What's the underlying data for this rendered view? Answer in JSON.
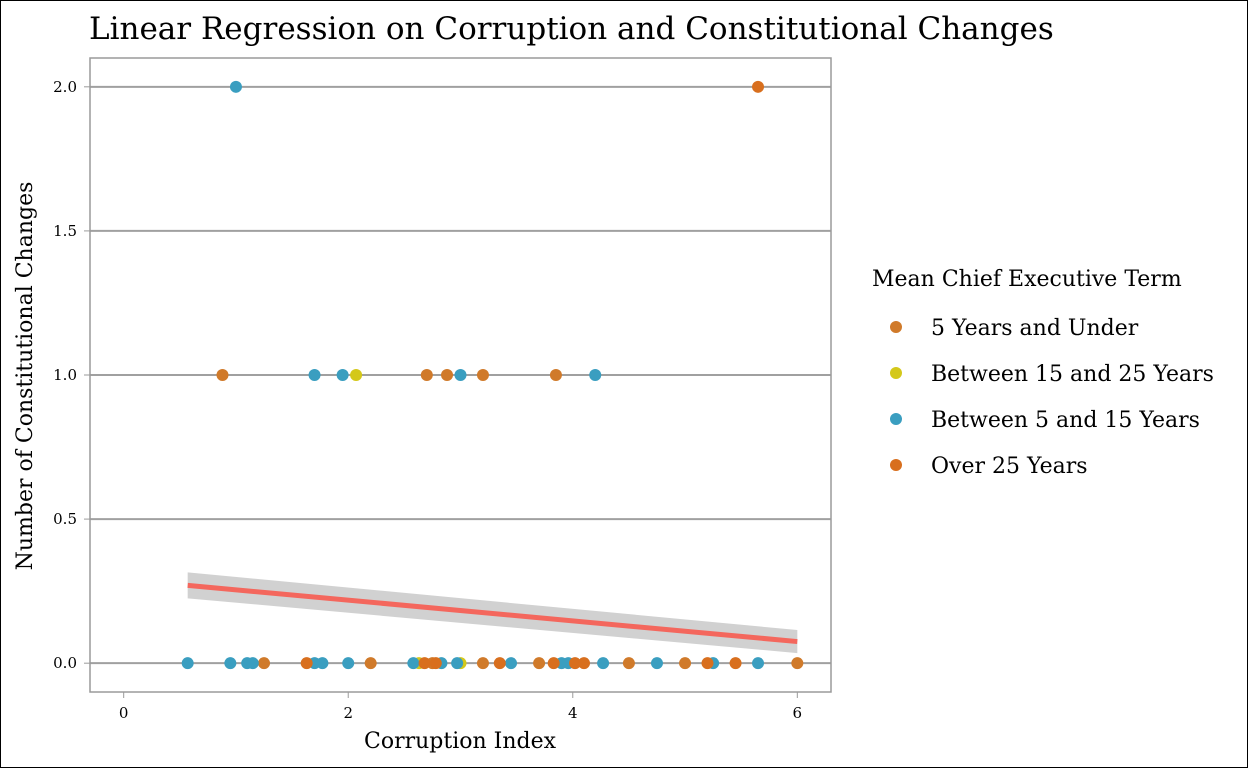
{
  "chart_data": {
    "type": "scatter",
    "title": "Linear Regression on Corruption and Constitutional Changes",
    "xlabel": "Corruption Index",
    "ylabel": "Number of Constitutional Changes",
    "xlim": [
      -0.3,
      6.3
    ],
    "ylim": [
      -0.1,
      2.1
    ],
    "x_ticks": [
      "0",
      "2",
      "4",
      "6"
    ],
    "y_ticks": [
      "0.0",
      "0.5",
      "1.0",
      "1.5",
      "2.0"
    ],
    "grid": "horizontal",
    "legend_position": "right",
    "legend_title": "Mean Chief Executive Term",
    "series": [
      {
        "name": "5 Years and Under",
        "color": "#d07a2a",
        "points": [
          [
            0.88,
            1
          ],
          [
            2.7,
            1
          ],
          [
            2.88,
            1
          ],
          [
            3.2,
            1
          ],
          [
            3.85,
            1
          ],
          [
            1.25,
            0
          ],
          [
            2.2,
            0
          ],
          [
            2.75,
            0
          ],
          [
            3.2,
            0
          ],
          [
            3.7,
            0
          ],
          [
            4.5,
            0
          ],
          [
            5.0,
            0
          ],
          [
            6.0,
            0
          ]
        ]
      },
      {
        "name": "Between 15 and 25 Years",
        "color": "#d4c81a",
        "points": [
          [
            2.07,
            1
          ],
          [
            2.63,
            0
          ],
          [
            3.0,
            0
          ]
        ]
      },
      {
        "name": "Between 5 and 15 Years",
        "color": "#3a9ec0",
        "points": [
          [
            1.0,
            2
          ],
          [
            1.7,
            1
          ],
          [
            1.95,
            1
          ],
          [
            3.0,
            1
          ],
          [
            4.2,
            1
          ],
          [
            0.57,
            0
          ],
          [
            0.95,
            0
          ],
          [
            1.1,
            0
          ],
          [
            1.15,
            0
          ],
          [
            1.7,
            0
          ],
          [
            1.77,
            0
          ],
          [
            2.0,
            0
          ],
          [
            2.58,
            0
          ],
          [
            2.83,
            0
          ],
          [
            2.97,
            0
          ],
          [
            3.45,
            0
          ],
          [
            3.9,
            0
          ],
          [
            3.96,
            0
          ],
          [
            4.27,
            0
          ],
          [
            4.75,
            0
          ],
          [
            5.25,
            0
          ],
          [
            5.65,
            0
          ]
        ]
      },
      {
        "name": "Over 25 Years",
        "color": "#d86f1e",
        "points": [
          [
            5.65,
            2
          ],
          [
            1.63,
            0
          ],
          [
            2.68,
            0
          ],
          [
            2.78,
            0
          ],
          [
            3.35,
            0
          ],
          [
            3.83,
            0
          ],
          [
            4.02,
            0
          ],
          [
            4.1,
            0
          ],
          [
            5.2,
            0
          ],
          [
            5.45,
            0
          ]
        ]
      }
    ],
    "regression": {
      "color": "#f4675d",
      "band_color": "#cccccc",
      "x_range": [
        0.57,
        6.0
      ],
      "y_start": 0.27,
      "y_end": 0.075,
      "ci_start": [
        0.225,
        0.315
      ],
      "ci_end": [
        0.035,
        0.115
      ]
    }
  }
}
